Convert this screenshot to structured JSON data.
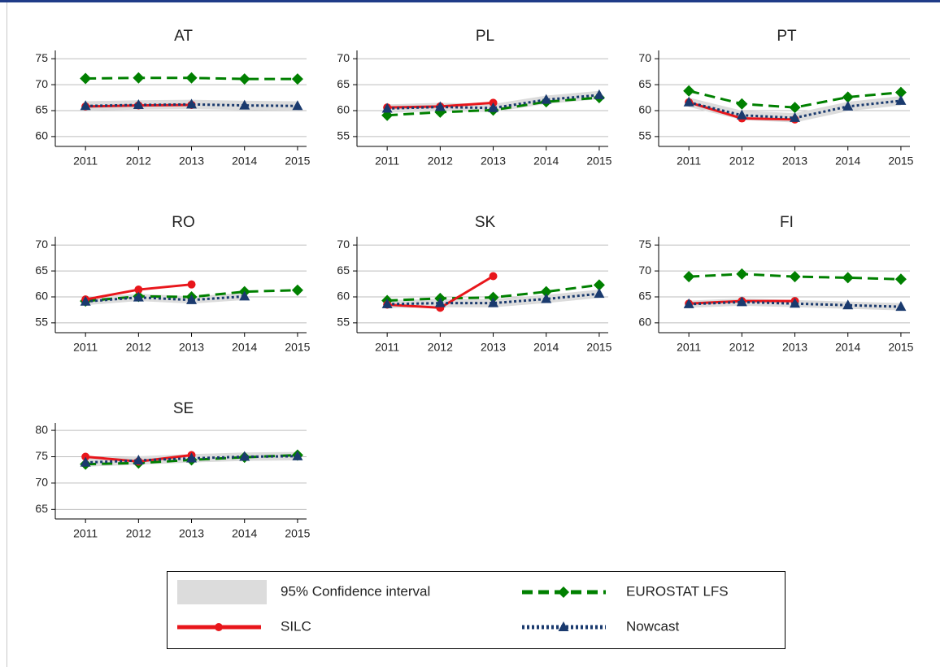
{
  "chart_data": [
    {
      "type": "line",
      "title": "AT",
      "x": [
        2011,
        2012,
        2013,
        2014,
        2015
      ],
      "xlim": [
        2010.43,
        2015.17
      ],
      "xticks": [
        2011,
        2012,
        2013,
        2014,
        2015
      ],
      "ylim": [
        58.1,
        76.6
      ],
      "yticks": [
        60,
        65,
        70,
        75
      ],
      "grid": true,
      "series": [
        {
          "name": "95% Confidence interval",
          "color": "#dcdcdc",
          "lower": [
            65.0,
            65.2,
            65.3,
            65.1,
            65.0
          ],
          "upper": [
            66.8,
            67.0,
            67.1,
            66.9,
            66.8
          ]
        },
        {
          "name": "EUROSTAT LFS",
          "color": "#008000",
          "values": [
            71.2,
            71.3,
            71.3,
            71.1,
            71.1
          ]
        },
        {
          "name": "SILC",
          "color": "#e8161b",
          "values": [
            65.8,
            66.0,
            66.1,
            null,
            null
          ]
        },
        {
          "name": "Nowcast",
          "color": "#1a3a6e",
          "values": [
            65.9,
            66.1,
            66.2,
            66.0,
            65.9
          ]
        }
      ]
    },
    {
      "type": "line",
      "title": "PL",
      "x": [
        2011,
        2012,
        2013,
        2014,
        2015
      ],
      "xlim": [
        2010.43,
        2015.17
      ],
      "xticks": [
        2011,
        2012,
        2013,
        2014,
        2015
      ],
      "ylim": [
        53.1,
        71.6
      ],
      "yticks": [
        55,
        60,
        65,
        70
      ],
      "grid": true,
      "series": [
        {
          "name": "95% Confidence interval",
          "color": "#dcdcdc",
          "lower": [
            59.6,
            59.9,
            59.7,
            61.3,
            62.2
          ],
          "upper": [
            61.2,
            61.5,
            61.3,
            62.9,
            63.8
          ]
        },
        {
          "name": "EUROSTAT LFS",
          "color": "#008000",
          "values": [
            59.1,
            59.7,
            60.1,
            61.7,
            62.5
          ]
        },
        {
          "name": "SILC",
          "color": "#e8161b",
          "values": [
            60.6,
            60.8,
            61.5,
            null,
            null
          ]
        },
        {
          "name": "Nowcast",
          "color": "#1a3a6e",
          "values": [
            60.4,
            60.7,
            60.5,
            62.1,
            63.0
          ]
        }
      ]
    },
    {
      "type": "line",
      "title": "PT",
      "x": [
        2011,
        2012,
        2013,
        2014,
        2015
      ],
      "xlim": [
        2010.43,
        2015.17
      ],
      "xticks": [
        2011,
        2012,
        2013,
        2014,
        2015
      ],
      "ylim": [
        53.1,
        71.6
      ],
      "yticks": [
        55,
        60,
        65,
        70
      ],
      "grid": true,
      "series": [
        {
          "name": "95% Confidence interval",
          "color": "#dcdcdc",
          "lower": [
            60.7,
            58.2,
            57.7,
            59.9,
            61.0
          ],
          "upper": [
            62.5,
            60.0,
            59.5,
            61.7,
            62.8
          ]
        },
        {
          "name": "EUROSTAT LFS",
          "color": "#008000",
          "values": [
            63.8,
            61.3,
            60.6,
            62.6,
            63.5
          ]
        },
        {
          "name": "SILC",
          "color": "#e8161b",
          "values": [
            61.6,
            58.5,
            58.3,
            null,
            null
          ]
        },
        {
          "name": "Nowcast",
          "color": "#1a3a6e",
          "values": [
            61.6,
            59.1,
            58.6,
            60.8,
            61.9
          ]
        }
      ]
    },
    {
      "type": "line",
      "title": "RO",
      "x": [
        2011,
        2012,
        2013,
        2014,
        2015
      ],
      "xlim": [
        2010.43,
        2015.17
      ],
      "xticks": [
        2011,
        2012,
        2013,
        2014,
        2015
      ],
      "ylim": [
        53.1,
        71.6
      ],
      "yticks": [
        55,
        60,
        65,
        70
      ],
      "grid": true,
      "series": [
        {
          "name": "95% Confidence interval",
          "color": "#dcdcdc",
          "lower": [
            58.4,
            59.2,
            58.7,
            59.4,
            null
          ],
          "upper": [
            59.8,
            60.6,
            60.1,
            60.8,
            null
          ]
        },
        {
          "name": "EUROSTAT LFS",
          "color": "#008000",
          "values": [
            59.2,
            60.1,
            60.0,
            61.0,
            61.3
          ]
        },
        {
          "name": "SILC",
          "color": "#e8161b",
          "values": [
            59.5,
            61.4,
            62.4,
            null,
            null
          ]
        },
        {
          "name": "Nowcast",
          "color": "#1a3a6e",
          "values": [
            59.1,
            59.9,
            59.4,
            60.1,
            null
          ]
        }
      ]
    },
    {
      "type": "line",
      "title": "SK",
      "x": [
        2011,
        2012,
        2013,
        2014,
        2015
      ],
      "xlim": [
        2010.43,
        2015.17
      ],
      "xticks": [
        2011,
        2012,
        2013,
        2014,
        2015
      ],
      "ylim": [
        53.1,
        71.6
      ],
      "yticks": [
        55,
        60,
        65,
        70
      ],
      "grid": true,
      "series": [
        {
          "name": "95% Confidence interval",
          "color": "#dcdcdc",
          "lower": [
            57.8,
            58.0,
            58.0,
            58.8,
            59.8
          ],
          "upper": [
            59.4,
            59.6,
            59.6,
            60.4,
            61.4
          ]
        },
        {
          "name": "EUROSTAT LFS",
          "color": "#008000",
          "values": [
            59.3,
            59.7,
            59.9,
            61.0,
            62.3
          ]
        },
        {
          "name": "SILC",
          "color": "#e8161b",
          "values": [
            58.5,
            57.9,
            64.0,
            null,
            null
          ]
        },
        {
          "name": "Nowcast",
          "color": "#1a3a6e",
          "values": [
            58.6,
            58.8,
            58.8,
            59.6,
            60.6
          ]
        }
      ]
    },
    {
      "type": "line",
      "title": "FI",
      "x": [
        2011,
        2012,
        2013,
        2014,
        2015
      ],
      "xlim": [
        2010.43,
        2015.17
      ],
      "xticks": [
        2011,
        2012,
        2013,
        2014,
        2015
      ],
      "ylim": [
        58.1,
        76.6
      ],
      "yticks": [
        60,
        65,
        70,
        75
      ],
      "grid": true,
      "series": [
        {
          "name": "95% Confidence interval",
          "color": "#dcdcdc",
          "lower": [
            62.9,
            63.3,
            63.0,
            62.7,
            62.4
          ],
          "upper": [
            64.3,
            64.7,
            64.4,
            64.1,
            63.8
          ]
        },
        {
          "name": "EUROSTAT LFS",
          "color": "#008000",
          "values": [
            68.9,
            69.4,
            68.9,
            68.7,
            68.4
          ]
        },
        {
          "name": "SILC",
          "color": "#e8161b",
          "values": [
            63.7,
            64.2,
            64.2,
            null,
            null
          ]
        },
        {
          "name": "Nowcast",
          "color": "#1a3a6e",
          "values": [
            63.6,
            64.0,
            63.7,
            63.4,
            63.1
          ]
        }
      ]
    },
    {
      "type": "line",
      "title": "SE",
      "x": [
        2011,
        2012,
        2013,
        2014,
        2015
      ],
      "xlim": [
        2010.43,
        2015.17
      ],
      "xticks": [
        2011,
        2012,
        2013,
        2014,
        2015
      ],
      "ylim": [
        63.2,
        81.4
      ],
      "yticks": [
        65,
        70,
        75,
        80
      ],
      "grid": true,
      "series": [
        {
          "name": "95% Confidence interval",
          "color": "#dcdcdc",
          "lower": [
            73.1,
            73.5,
            73.9,
            74.2,
            74.3
          ],
          "upper": [
            74.7,
            75.1,
            75.5,
            75.8,
            75.9
          ]
        },
        {
          "name": "EUROSTAT LFS",
          "color": "#008000",
          "values": [
            73.6,
            73.8,
            74.4,
            74.9,
            75.3
          ]
        },
        {
          "name": "SILC",
          "color": "#e8161b",
          "values": [
            75.0,
            74.1,
            75.3,
            null,
            null
          ]
        },
        {
          "name": "Nowcast",
          "color": "#1a3a6e",
          "values": [
            73.9,
            74.3,
            74.7,
            75.0,
            75.1
          ]
        }
      ]
    }
  ]
}
